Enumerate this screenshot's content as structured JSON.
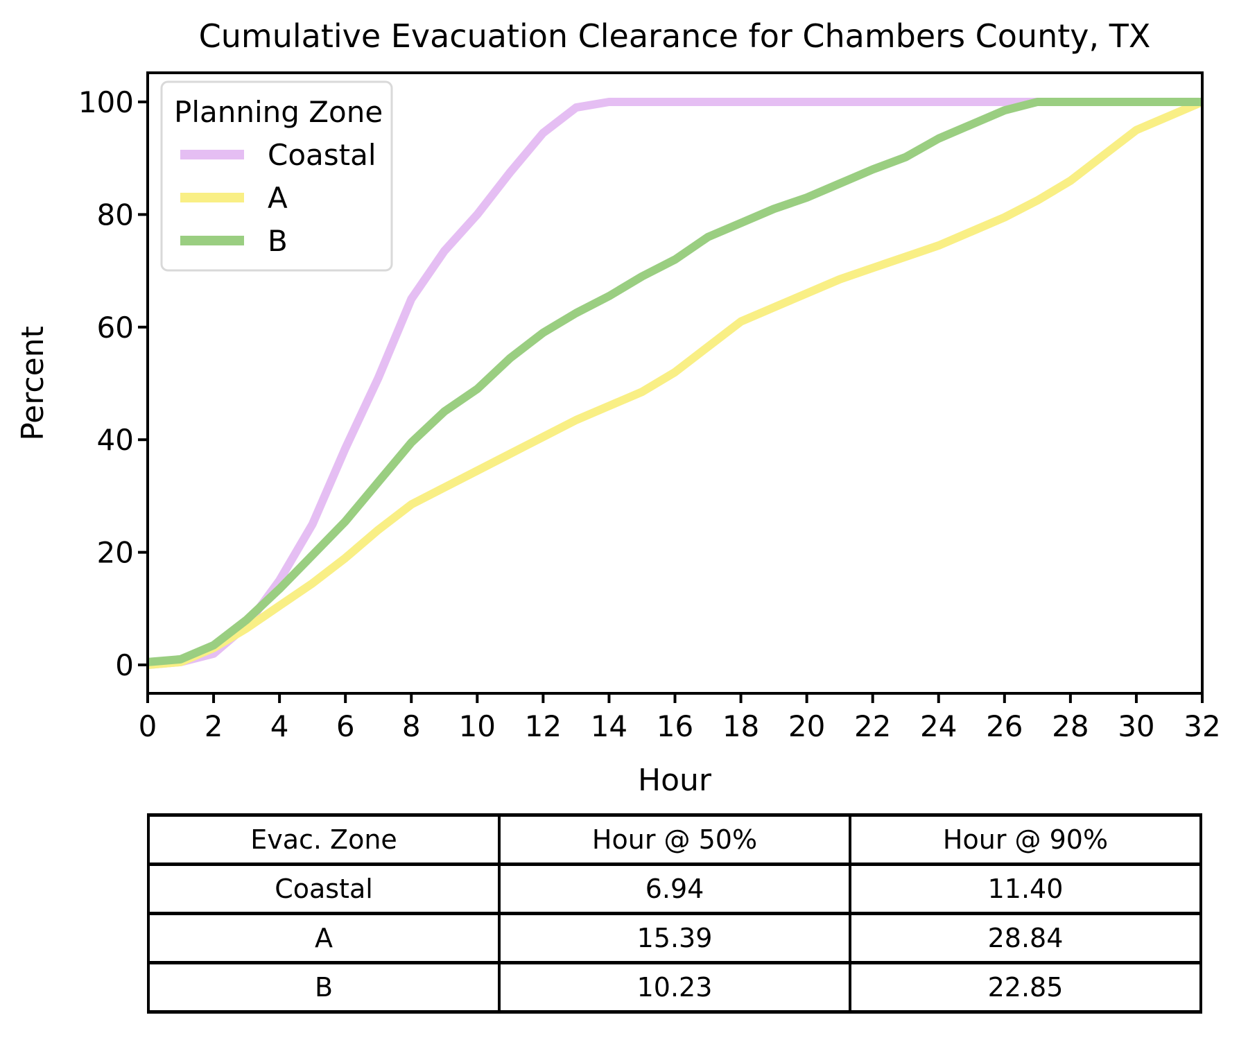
{
  "chart_data": {
    "type": "line",
    "title": "Cumulative Evacuation Clearance for Chambers County, TX",
    "xlabel": "Hour",
    "ylabel": "Percent",
    "xlim": [
      0,
      32
    ],
    "ylim": [
      0,
      100
    ],
    "x_ticks": [
      0,
      2,
      4,
      6,
      8,
      10,
      12,
      14,
      16,
      18,
      20,
      22,
      24,
      26,
      28,
      30,
      32
    ],
    "y_ticks": [
      0,
      20,
      40,
      60,
      80,
      100
    ],
    "grid": false,
    "legend": {
      "title": "Planning Zone",
      "position": "upper left"
    },
    "x": [
      0,
      1,
      2,
      3,
      4,
      5,
      6,
      7,
      8,
      9,
      10,
      11,
      12,
      13,
      14,
      15,
      16,
      17,
      18,
      19,
      20,
      21,
      22,
      23,
      24,
      25,
      26,
      27,
      28,
      29,
      30,
      31,
      32
    ],
    "series": [
      {
        "name": "Coastal",
        "color": "#e5bef3",
        "values": [
          0,
          0.5,
          2,
          7,
          15,
          25,
          38.5,
          51,
          65,
          73.5,
          80,
          87.5,
          94.5,
          99,
          100,
          100,
          100,
          100,
          100,
          100,
          100,
          100,
          100,
          100,
          100,
          100,
          100,
          100,
          100,
          100,
          100,
          100,
          100
        ]
      },
      {
        "name": "A",
        "color": "#f9ef85",
        "values": [
          0,
          0.5,
          3,
          6.5,
          10.5,
          14.5,
          19,
          24,
          28.5,
          31.5,
          34.5,
          37.5,
          40.5,
          43.5,
          46,
          48.5,
          52,
          56.5,
          61,
          63.5,
          66,
          68.5,
          70.5,
          72.5,
          74.5,
          77,
          79.5,
          82.5,
          86,
          90.5,
          95,
          97.5,
          100
        ]
      },
      {
        "name": "B",
        "color": "#9ace81",
        "values": [
          0.5,
          1,
          3.5,
          8,
          13.5,
          19.5,
          25.5,
          32.5,
          39.5,
          45,
          49,
          54.5,
          59,
          62.5,
          65.5,
          69,
          72,
          76,
          78.5,
          81,
          83,
          85.5,
          88,
          90.2,
          93.5,
          96,
          98.5,
          100,
          100,
          100,
          100,
          100,
          100
        ]
      }
    ]
  },
  "table": {
    "headers": [
      "Evac. Zone",
      "Hour @ 50%",
      "Hour @ 90%"
    ],
    "rows": [
      [
        "Coastal",
        "6.94",
        "11.40"
      ],
      [
        "A",
        "15.39",
        "28.84"
      ],
      [
        "B",
        "10.23",
        "22.85"
      ]
    ]
  },
  "colors": {
    "axis": "#000000",
    "text": "#000000",
    "legend_border": "#d9d9d9",
    "background": "#ffffff"
  }
}
